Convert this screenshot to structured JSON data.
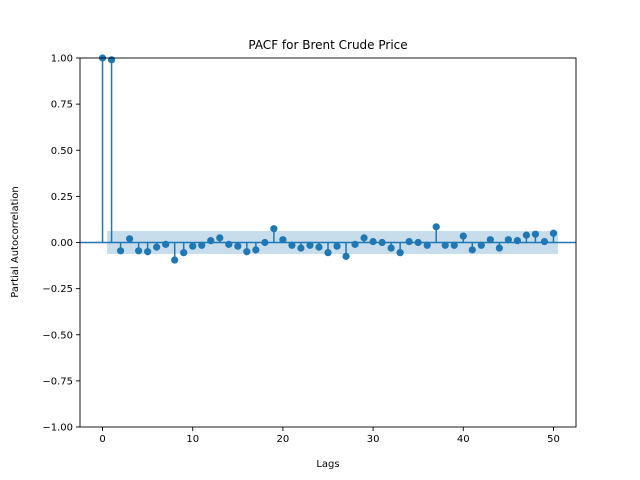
{
  "chart_data": {
    "type": "scatter",
    "title": "PACF for Brent Crude Price",
    "xlabel": "Lags",
    "ylabel": "Partial Autocorrelation",
    "xlim": [
      -2.5,
      52.5
    ],
    "ylim": [
      -1.0,
      1.0
    ],
    "xticks": [
      0,
      10,
      20,
      30,
      40,
      50
    ],
    "xtick_labels": [
      "0",
      "10",
      "20",
      "30",
      "40",
      "50"
    ],
    "yticks": [
      -1.0,
      -0.75,
      -0.5,
      -0.25,
      0.0,
      0.25,
      0.5,
      0.75,
      1.0
    ],
    "ytick_labels": [
      "−1.00",
      "−0.75",
      "−0.50",
      "−0.25",
      "0.00",
      "0.25",
      "0.50",
      "0.75",
      "1.00"
    ],
    "grid": false,
    "confidence_band": 0.062,
    "x": [
      0,
      1,
      2,
      3,
      4,
      5,
      6,
      7,
      8,
      9,
      10,
      11,
      12,
      13,
      14,
      15,
      16,
      17,
      18,
      19,
      20,
      21,
      22,
      23,
      24,
      25,
      26,
      27,
      28,
      29,
      30,
      31,
      32,
      33,
      34,
      35,
      36,
      37,
      38,
      39,
      40,
      41,
      42,
      43,
      44,
      45,
      46,
      47,
      48,
      49,
      50
    ],
    "values": [
      1.0,
      0.99,
      -0.045,
      0.02,
      -0.045,
      -0.05,
      -0.025,
      -0.01,
      -0.095,
      -0.055,
      -0.02,
      -0.015,
      0.01,
      0.025,
      -0.01,
      -0.02,
      -0.05,
      -0.04,
      0.0,
      0.075,
      0.015,
      -0.015,
      -0.03,
      -0.015,
      -0.025,
      -0.055,
      -0.02,
      -0.075,
      -0.01,
      0.025,
      0.005,
      0.0,
      -0.03,
      -0.055,
      0.005,
      0.0,
      -0.015,
      0.085,
      -0.015,
      -0.015,
      0.035,
      -0.04,
      -0.015,
      0.015,
      -0.03,
      0.015,
      0.01,
      0.04,
      0.045,
      0.005,
      0.05
    ],
    "colors": {
      "marker": "#1f77b4",
      "band": "#1f77b4",
      "axes": "#000000"
    }
  }
}
